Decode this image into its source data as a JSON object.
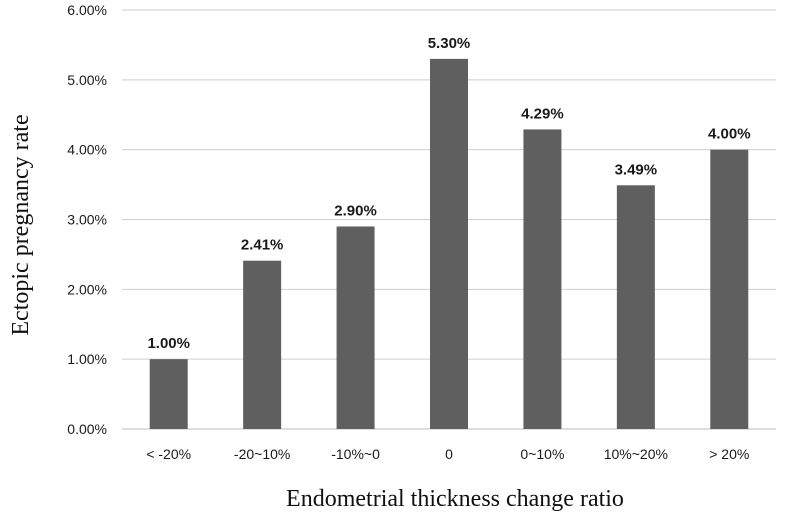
{
  "chart_data": {
    "type": "bar",
    "title": "",
    "xlabel": "Endometrial thickness change ratio",
    "ylabel": "Ectopic pregnancy rate",
    "categories": [
      "< -20%",
      "-20~10%",
      "-10%~0",
      "0",
      "0~10%",
      "10%~20%",
      "> 20%"
    ],
    "values": [
      1.0,
      2.41,
      2.9,
      5.3,
      4.29,
      3.49,
      4.0
    ],
    "data_labels": [
      "1.00%",
      "2.41%",
      "2.90%",
      "5.30%",
      "4.29%",
      "3.49%",
      "4.00%"
    ],
    "ylim": [
      0,
      6
    ],
    "yticks": [
      0,
      1,
      2,
      3,
      4,
      5,
      6
    ],
    "ytick_labels": [
      "0.00%",
      "1.00%",
      "2.00%",
      "3.00%",
      "4.00%",
      "5.00%",
      "6.00%"
    ],
    "grid": true,
    "legend": "none",
    "bar_color": "#5f5f5f"
  }
}
